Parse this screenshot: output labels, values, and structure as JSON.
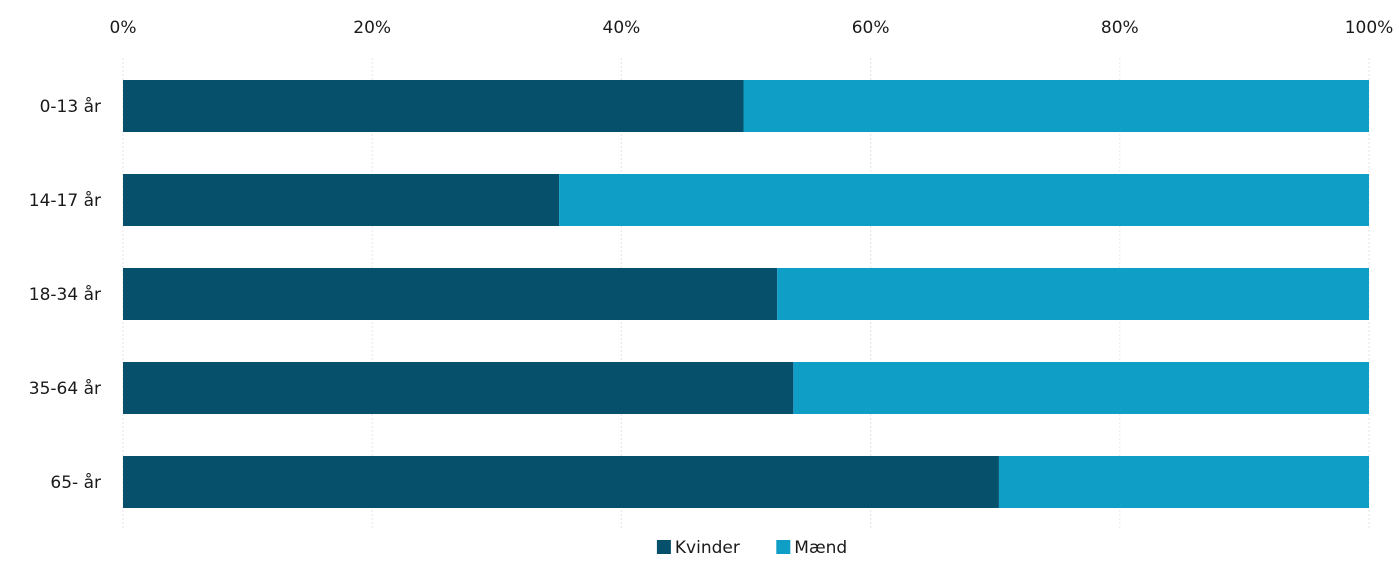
{
  "chart_data": {
    "type": "bar",
    "orientation": "horizontal",
    "stacked": true,
    "normalized": true,
    "title": "",
    "xlabel": "",
    "ylabel": "",
    "xlim": [
      0,
      100
    ],
    "x_ticks": [
      "0%",
      "20%",
      "40%",
      "60%",
      "80%",
      "100%"
    ],
    "x_axis_position": "top",
    "grid": true,
    "legend_position": "bottom-center",
    "categories": [
      "0-13 år",
      "14-17 år",
      "18-34 år",
      "35-64 år",
      "65- år"
    ],
    "series": [
      {
        "name": "Kvinder",
        "color": "#06506b",
        "values": [
          49.8,
          35.0,
          52.5,
          53.8,
          70.3
        ]
      },
      {
        "name": "Mænd",
        "color": "#0e9ec6",
        "values": [
          50.2,
          65.0,
          47.5,
          46.2,
          29.7
        ]
      }
    ]
  }
}
